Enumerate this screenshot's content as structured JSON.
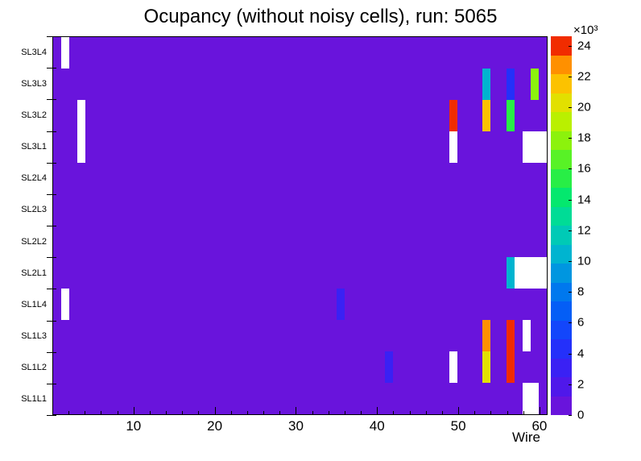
{
  "chart_data": {
    "type": "heatmap",
    "title": "Ocupancy (without noisy cells), run: 5065",
    "xlabel": "Wire",
    "x_min": 0,
    "x_max": 61,
    "x_ticks": [
      10,
      20,
      30,
      40,
      50,
      60
    ],
    "rows_top_to_bottom": [
      "SL3L4",
      "SL3L3",
      "SL3L2",
      "SL3L1",
      "SL2L4",
      "SL2L3",
      "SL2L2",
      "SL2L1",
      "SL1L4",
      "SL1L3",
      "SL1L2",
      "SL1L1"
    ],
    "value_unit": "hits ×10³",
    "background_value": 1,
    "background_color": "#6914dc",
    "empty_color": "#ffffff",
    "palette": [
      "#6914dc",
      "#4f18ea",
      "#3a21f4",
      "#2430fa",
      "#1346fb",
      "#045ef6",
      "#0078ee",
      "#0096e0",
      "#00b4d0",
      "#00cab6",
      "#00dc96",
      "#04e86e",
      "#28ee46",
      "#58f226",
      "#8cf20c",
      "#baf000",
      "#e2e000",
      "#fcc200",
      "#ff9000",
      "#f12c00"
    ],
    "colorbar": {
      "scale_label": "×10³",
      "min": 0,
      "max": 24,
      "ticks": [
        0,
        2,
        4,
        6,
        8,
        10,
        12,
        14,
        16,
        18,
        20,
        22,
        24
      ]
    },
    "cells": [
      {
        "row": "SL3L4",
        "wire": 2,
        "v": 0
      },
      {
        "row": "SL3L3",
        "wire": 54,
        "v": 10
      },
      {
        "row": "SL3L3",
        "wire": 57,
        "v": 4
      },
      {
        "row": "SL3L3",
        "wire": 60,
        "v": 17
      },
      {
        "row": "SL3L2",
        "wire": 4,
        "v": 0
      },
      {
        "row": "SL3L2",
        "wire": 50,
        "v": 23
      },
      {
        "row": "SL3L2",
        "wire": 54,
        "v": 21
      },
      {
        "row": "SL3L2",
        "wire": 57,
        "v": 15
      },
      {
        "row": "SL3L1",
        "wire": 4,
        "v": 0
      },
      {
        "row": "SL3L1",
        "wire": 50,
        "v": 0
      },
      {
        "row": "SL3L1",
        "wire": 59,
        "v": 0
      },
      {
        "row": "SL3L1",
        "wire": 60,
        "v": 0
      },
      {
        "row": "SL3L1",
        "wire": 61,
        "v": 0
      },
      {
        "row": "SL2L1",
        "wire": 57,
        "v": 10
      },
      {
        "row": "SL2L1",
        "wire": 58,
        "v": 0
      },
      {
        "row": "SL2L1",
        "wire": 59,
        "v": 0
      },
      {
        "row": "SL2L1",
        "wire": 60,
        "v": 0
      },
      {
        "row": "SL2L1",
        "wire": 61,
        "v": 0
      },
      {
        "row": "SL1L4",
        "wire": 2,
        "v": 0
      },
      {
        "row": "SL1L4",
        "wire": 36,
        "v": 3
      },
      {
        "row": "SL1L3",
        "wire": 54,
        "v": 22
      },
      {
        "row": "SL1L3",
        "wire": 57,
        "v": 24
      },
      {
        "row": "SL1L3",
        "wire": 59,
        "v": 0
      },
      {
        "row": "SL1L2",
        "wire": 42,
        "v": 3
      },
      {
        "row": "SL1L2",
        "wire": 50,
        "v": 0
      },
      {
        "row": "SL1L2",
        "wire": 54,
        "v": 20
      },
      {
        "row": "SL1L2",
        "wire": 57,
        "v": 23
      },
      {
        "row": "SL1L1",
        "wire": 59,
        "v": 0
      },
      {
        "row": "SL1L1",
        "wire": 60,
        "v": 0
      }
    ]
  }
}
